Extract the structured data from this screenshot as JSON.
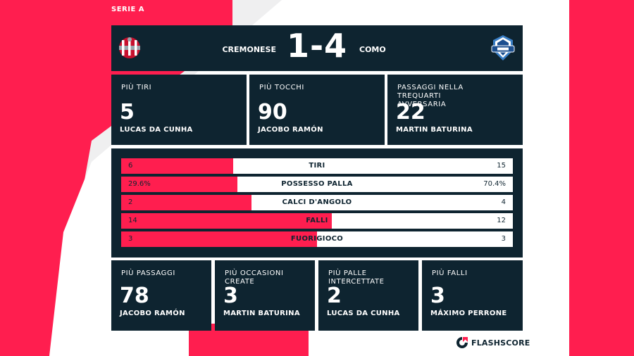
{
  "league": "SERIE A",
  "match": {
    "home_team": "CREMONESE",
    "away_team": "COMO",
    "score": "1-4"
  },
  "top_stats": [
    {
      "label": "PIÙ TIRI",
      "value": "5",
      "player": "LUCAS DA CUNHA"
    },
    {
      "label": "PIÙ TOCCHI",
      "value": "90",
      "player": "JACOBO RAMÓN"
    },
    {
      "label": "PASSAGGI NELLA TREQUARTI AVVERSARIA",
      "value": "22",
      "player": "MARTIN BATURINA"
    }
  ],
  "team_stats": [
    {
      "label": "TIRI",
      "home": "6",
      "away": "15",
      "home_share": 0.286
    },
    {
      "label": "POSSESSO PALLA",
      "home": "29.6%",
      "away": "70.4%",
      "home_share": 0.296
    },
    {
      "label": "CALCI D'ANGOLO",
      "home": "2",
      "away": "4",
      "home_share": 0.333
    },
    {
      "label": "FALLI",
      "home": "14",
      "away": "12",
      "home_share": 0.538
    },
    {
      "label": "FUORIGIOCO",
      "home": "3",
      "away": "3",
      "home_share": 0.5
    }
  ],
  "bottom_stats": [
    {
      "label": "PIÙ PASSAGGI",
      "value": "78",
      "player": "JACOBO RAMÓN"
    },
    {
      "label": "PIÙ OCCASIONI CREATE",
      "value": "3",
      "player": "MARTIN BATURINA"
    },
    {
      "label": "PIÙ PALLE INTERCETTATE",
      "value": "2",
      "player": "LUCAS DA CUNHA"
    },
    {
      "label": "PIÙ FALLI",
      "value": "3",
      "player": "MÁXIMO PERRONE"
    }
  ],
  "brand": "FLASHSCORE",
  "colors": {
    "accent": "#ff1e4f",
    "panel": "#0e2430"
  },
  "icons": {
    "home_logo": "cremonese-crest-icon",
    "away_logo": "como-crest-icon",
    "brand_logo": "flashscore-logo-icon"
  }
}
